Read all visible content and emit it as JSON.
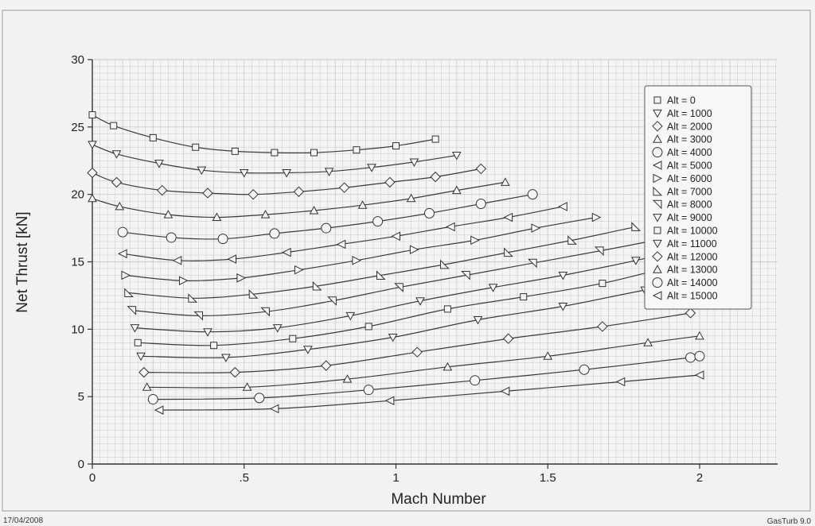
{
  "footer": {
    "date": "17/04/2008",
    "software": "GasTurb 9.0"
  },
  "colors": {
    "background": "#f2f3f1",
    "plot_background": "#f4f5f3",
    "grid": "#c9cccc",
    "line": "#3a3a3a",
    "text": "#222222"
  },
  "chart_data": {
    "type": "line",
    "title": "",
    "xlabel": "Mach Number",
    "ylabel": "Net Thrust [kN]",
    "xlim": [
      0,
      2.25
    ],
    "ylim": [
      0,
      30
    ],
    "xticks": [
      0,
      0.5,
      1,
      1.5,
      2
    ],
    "xtick_labels": [
      "0",
      ".5",
      "1",
      "1.5",
      "2"
    ],
    "yticks": [
      0,
      5,
      10,
      15,
      20,
      25,
      30
    ],
    "ytick_labels": [
      "0",
      "5",
      "10",
      "15",
      "20",
      "25",
      "30"
    ],
    "grid": true,
    "legend_position": "top-right",
    "series": [
      {
        "name": "Alt = 0",
        "marker": "square",
        "x": [
          0,
          0.07,
          0.2,
          0.34,
          0.47,
          0.6,
          0.73,
          0.87,
          1.0,
          1.13
        ],
        "y": [
          25.9,
          25.1,
          24.2,
          23.5,
          23.2,
          23.1,
          23.1,
          23.3,
          23.6,
          24.1
        ]
      },
      {
        "name": "Alt = 1000",
        "marker": "triangle-down",
        "x": [
          0,
          0.08,
          0.22,
          0.36,
          0.5,
          0.64,
          0.78,
          0.92,
          1.06,
          1.2
        ],
        "y": [
          23.7,
          23.0,
          22.3,
          21.8,
          21.6,
          21.6,
          21.7,
          22.0,
          22.4,
          22.9
        ]
      },
      {
        "name": "Alt = 2000",
        "marker": "diamond",
        "x": [
          0,
          0.08,
          0.23,
          0.38,
          0.53,
          0.68,
          0.83,
          0.98,
          1.13,
          1.28
        ],
        "y": [
          21.6,
          20.9,
          20.3,
          20.1,
          20.0,
          20.2,
          20.5,
          20.9,
          21.3,
          21.9
        ]
      },
      {
        "name": "Alt = 3000",
        "marker": "triangle-up",
        "x": [
          0,
          0.09,
          0.25,
          0.41,
          0.57,
          0.73,
          0.89,
          1.05,
          1.2,
          1.36
        ],
        "y": [
          19.7,
          19.1,
          18.5,
          18.3,
          18.5,
          18.8,
          19.2,
          19.7,
          20.3,
          20.9
        ]
      },
      {
        "name": "Alt = 4000",
        "marker": "circle",
        "x": [
          0.1,
          0.26,
          0.43,
          0.6,
          0.77,
          0.94,
          1.11,
          1.28,
          1.45
        ],
        "y": [
          17.2,
          16.8,
          16.7,
          17.1,
          17.5,
          18.0,
          18.6,
          19.3,
          20.0
        ]
      },
      {
        "name": "Alt = 5000",
        "marker": "triangle-left",
        "x": [
          0.1,
          0.28,
          0.46,
          0.64,
          0.82,
          1.0,
          1.18,
          1.37,
          1.55
        ],
        "y": [
          15.6,
          15.1,
          15.2,
          15.7,
          16.3,
          16.9,
          17.6,
          18.3,
          19.1
        ]
      },
      {
        "name": "Alt = 6000",
        "marker": "triangle-right",
        "x": [
          0.11,
          0.3,
          0.49,
          0.68,
          0.87,
          1.06,
          1.26,
          1.46,
          1.66
        ],
        "y": [
          14.0,
          13.6,
          13.8,
          14.4,
          15.1,
          15.9,
          16.6,
          17.5,
          18.3
        ]
      },
      {
        "name": "Alt = 7000",
        "marker": "triangle-sw",
        "x": [
          0.12,
          0.33,
          0.53,
          0.74,
          0.95,
          1.16,
          1.37,
          1.58,
          1.79
        ],
        "y": [
          12.7,
          12.3,
          12.6,
          13.2,
          14.0,
          14.8,
          15.7,
          16.6,
          17.6
        ]
      },
      {
        "name": "Alt = 8000",
        "marker": "triangle-nw",
        "x": [
          0.13,
          0.35,
          0.57,
          0.79,
          1.01,
          1.23,
          1.45,
          1.67,
          1.9
        ],
        "y": [
          11.4,
          11.0,
          11.3,
          12.1,
          13.1,
          14.0,
          14.9,
          15.8,
          16.8
        ]
      },
      {
        "name": "Alt = 9000",
        "marker": "triangle-down",
        "x": [
          0.14,
          0.38,
          0.61,
          0.85,
          1.08,
          1.32,
          1.55,
          1.79,
          2.0
        ],
        "y": [
          10.1,
          9.8,
          10.1,
          11.0,
          12.1,
          13.1,
          14.0,
          15.1,
          16.2
        ]
      },
      {
        "name": "Alt = 10000",
        "marker": "square",
        "x": [
          0.15,
          0.4,
          0.66,
          0.91,
          1.17,
          1.42,
          1.68,
          1.93
        ],
        "y": [
          9.0,
          8.8,
          9.3,
          10.2,
          11.5,
          12.4,
          13.4,
          14.8
        ]
      },
      {
        "name": "Alt = 11000",
        "marker": "triangle-down",
        "x": [
          0.16,
          0.44,
          0.71,
          0.99,
          1.27,
          1.55,
          1.82,
          2.0
        ],
        "y": [
          8.0,
          7.9,
          8.5,
          9.4,
          10.7,
          11.7,
          12.9,
          13.5
        ]
      },
      {
        "name": "Alt = 12000",
        "marker": "diamond",
        "x": [
          0.17,
          0.47,
          0.77,
          1.07,
          1.37,
          1.68,
          1.97
        ],
        "y": [
          6.8,
          6.8,
          7.3,
          8.3,
          9.3,
          10.2,
          11.2
        ]
      },
      {
        "name": "Alt = 13000",
        "marker": "triangle-up",
        "x": [
          0.18,
          0.51,
          0.84,
          1.17,
          1.5,
          1.83,
          2.0
        ],
        "y": [
          5.7,
          5.7,
          6.3,
          7.2,
          8.0,
          9.0,
          9.5
        ]
      },
      {
        "name": "Alt = 14000",
        "marker": "circle",
        "x": [
          0.2,
          0.55,
          0.91,
          1.26,
          1.62,
          1.97,
          2.0
        ],
        "y": [
          4.8,
          4.9,
          5.5,
          6.2,
          7.0,
          7.9,
          8.0
        ]
      },
      {
        "name": "Alt = 15000",
        "marker": "triangle-left",
        "x": [
          0.22,
          0.6,
          0.98,
          1.36,
          1.74,
          2.0
        ],
        "y": [
          4.0,
          4.1,
          4.7,
          5.4,
          6.1,
          6.6
        ]
      }
    ]
  }
}
